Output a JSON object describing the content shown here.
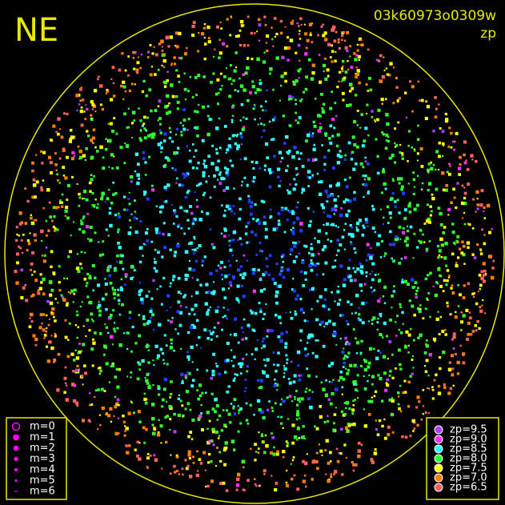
{
  "header": {
    "direction": "NE",
    "frame_id": "03k60973o0309w",
    "mode": "zp"
  },
  "legend_magnitude": {
    "items": [
      "m=0",
      "m=1",
      "m=2",
      "m=3",
      "m=4",
      "m=5",
      "m=6"
    ],
    "color": "#ff00ff"
  },
  "legend_zeropoint": {
    "items": [
      {
        "label": "zp=9.5",
        "color": "#b040ff"
      },
      {
        "label": "zp=9.0",
        "color": "#ff30ff"
      },
      {
        "label": "zp=8.5",
        "color": "#30ffff"
      },
      {
        "label": "zp=8.0",
        "color": "#30ff30"
      },
      {
        "label": "zp=7.5",
        "color": "#ffff00"
      },
      {
        "label": "zp=7.0",
        "color": "#ff8000"
      },
      {
        "label": "zp=6.5",
        "color": "#ff6060"
      }
    ]
  }
}
